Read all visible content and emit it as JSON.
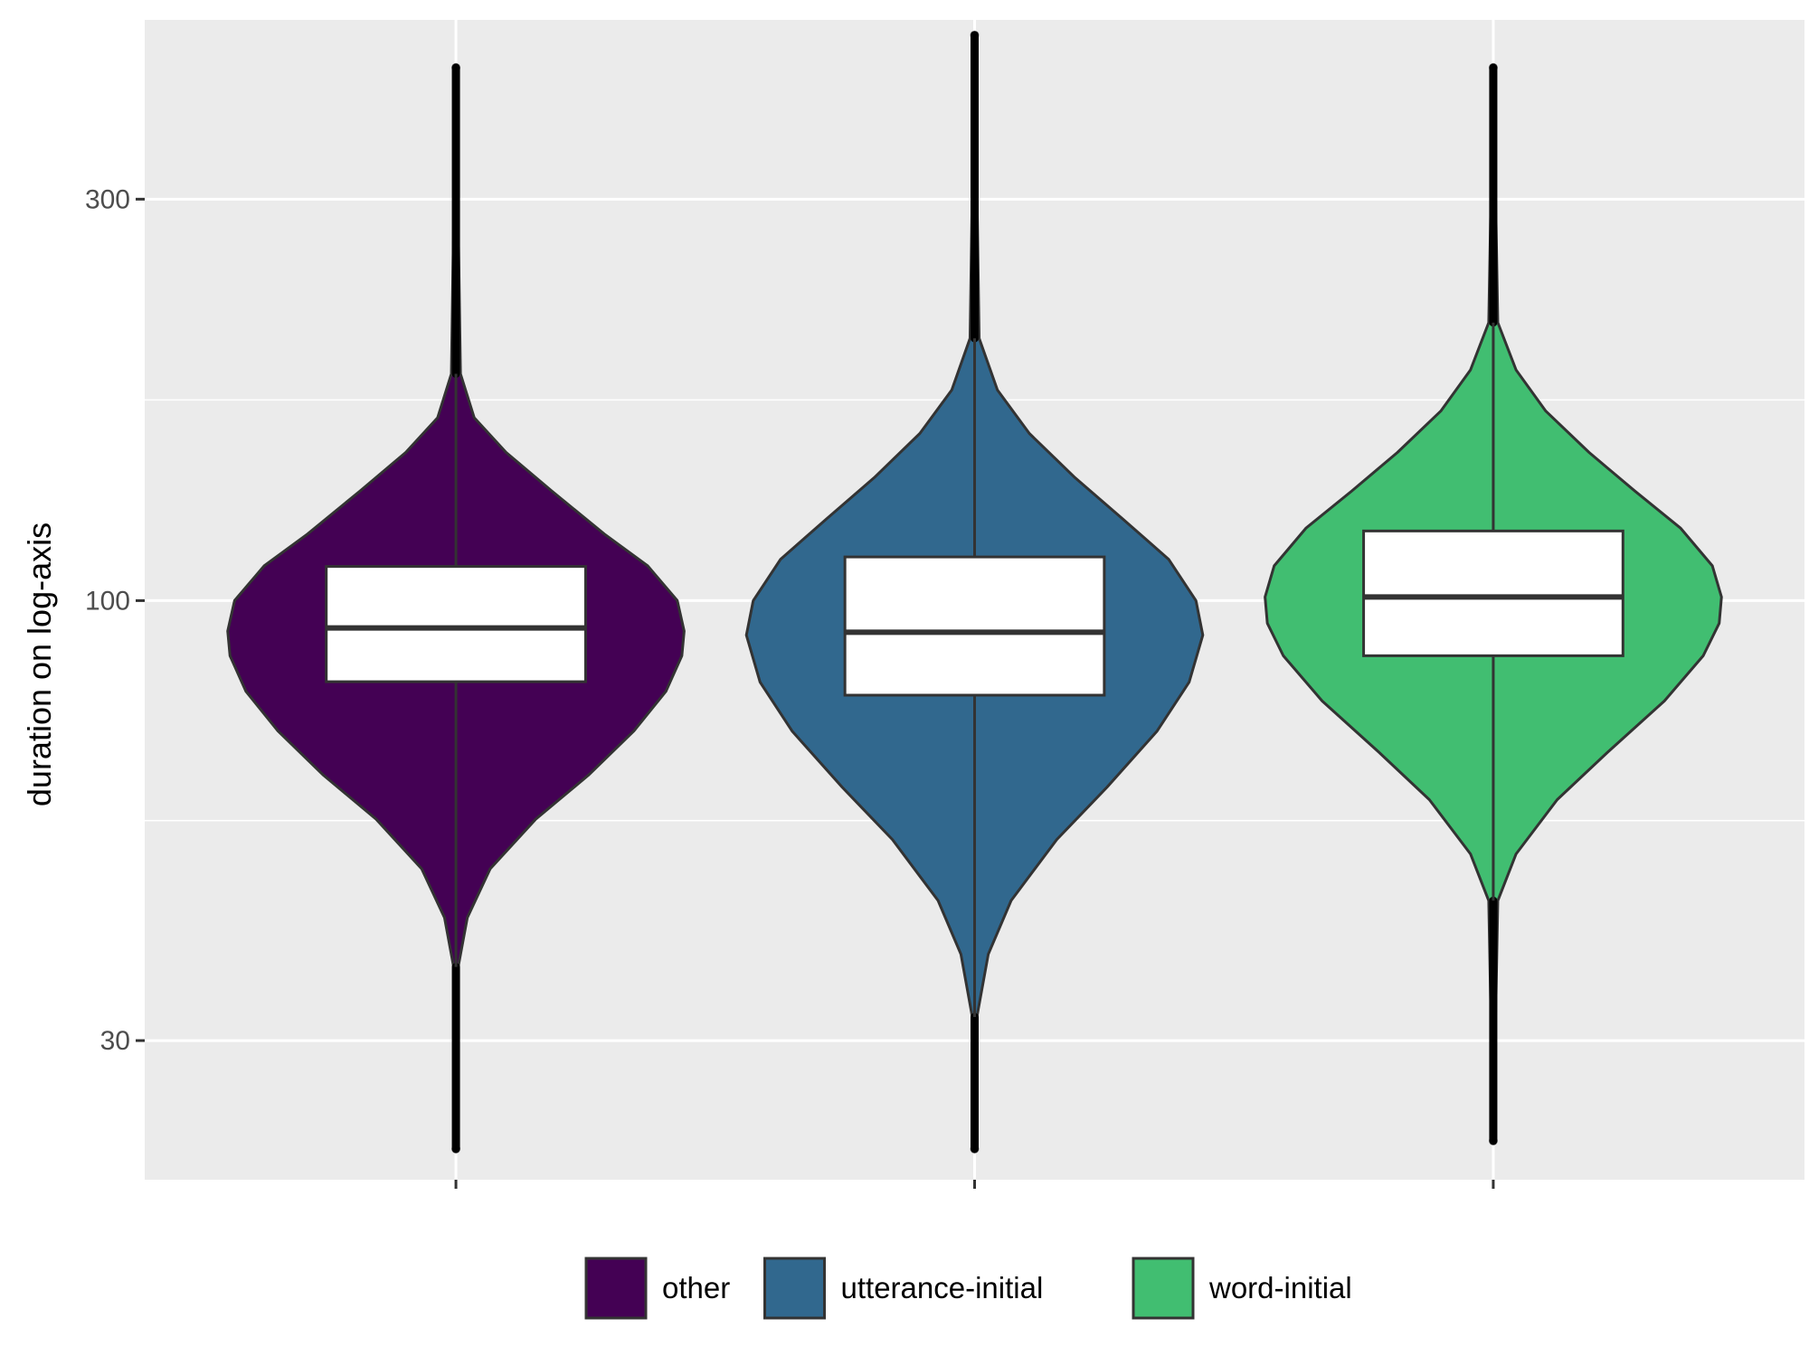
{
  "chart_data": {
    "type": "violin",
    "title": "",
    "xlabel": "",
    "ylabel": "duration on log-axis",
    "y_scale": "log10",
    "ylim": [
      20.5,
      490
    ],
    "y_ticks": [
      30,
      100,
      300
    ],
    "y_tick_labels": [
      "30",
      "100",
      "300"
    ],
    "x_tick_labels": [
      "",
      "",
      ""
    ],
    "grid": true,
    "legend": {
      "position": "bottom",
      "entries": [
        "other",
        "utterance-initial",
        "word-initial"
      ]
    },
    "series": [
      {
        "name": "other",
        "color": "#440154",
        "min": 22.3,
        "max": 430,
        "whisker_low": 36.7,
        "whisker_high": 186,
        "q1": 80.1,
        "median": 92.8,
        "q3": 109.8,
        "violin_profile": [
          [
            22.3,
            0.0
          ],
          [
            36.7,
            0.01
          ],
          [
            42,
            0.05
          ],
          [
            48,
            0.15
          ],
          [
            55,
            0.35
          ],
          [
            62,
            0.58
          ],
          [
            70,
            0.78
          ],
          [
            78,
            0.92
          ],
          [
            86,
            0.99
          ],
          [
            92,
            1.0
          ],
          [
            100,
            0.97
          ],
          [
            110,
            0.84
          ],
          [
            120,
            0.65
          ],
          [
            135,
            0.42
          ],
          [
            150,
            0.22
          ],
          [
            165,
            0.08
          ],
          [
            186,
            0.02
          ],
          [
            430,
            0.0
          ]
        ]
      },
      {
        "name": "utterance-initial",
        "color": "#31688e",
        "min": 22.3,
        "max": 470,
        "whisker_low": 32.0,
        "whisker_high": 205,
        "q1": 77.2,
        "median": 91.7,
        "q3": 112.7,
        "violin_profile": [
          [
            22.3,
            0.0
          ],
          [
            32,
            0.01
          ],
          [
            38,
            0.06
          ],
          [
            44,
            0.16
          ],
          [
            52,
            0.36
          ],
          [
            60,
            0.58
          ],
          [
            70,
            0.8
          ],
          [
            80,
            0.94
          ],
          [
            91,
            1.0
          ],
          [
            100,
            0.97
          ],
          [
            112,
            0.85
          ],
          [
            125,
            0.65
          ],
          [
            140,
            0.44
          ],
          [
            158,
            0.24
          ],
          [
            178,
            0.1
          ],
          [
            205,
            0.02
          ],
          [
            470,
            0.0
          ]
        ]
      },
      {
        "name": "word-initial",
        "color": "#41be71",
        "min": 22.8,
        "max": 430,
        "whisker_low": 44.0,
        "whisker_high": 214,
        "q1": 86.0,
        "median": 101.0,
        "q3": 121.0,
        "violin_profile": [
          [
            22.8,
            0.0
          ],
          [
            44,
            0.02
          ],
          [
            50,
            0.1
          ],
          [
            58,
            0.28
          ],
          [
            66,
            0.5
          ],
          [
            76,
            0.75
          ],
          [
            86,
            0.92
          ],
          [
            94,
            0.99
          ],
          [
            101,
            1.0
          ],
          [
            110,
            0.96
          ],
          [
            122,
            0.82
          ],
          [
            135,
            0.62
          ],
          [
            150,
            0.42
          ],
          [
            168,
            0.23
          ],
          [
            188,
            0.1
          ],
          [
            214,
            0.02
          ],
          [
            430,
            0.0
          ]
        ]
      }
    ]
  }
}
